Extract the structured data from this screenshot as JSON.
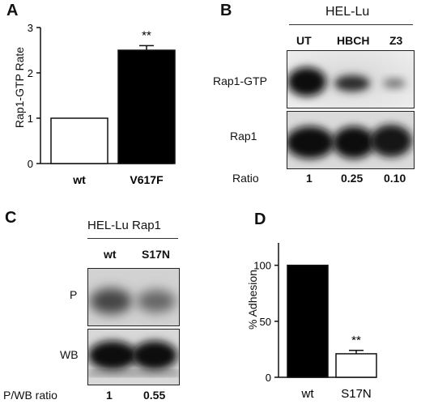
{
  "panel_a": {
    "letter": "A",
    "significance": "**"
  },
  "panel_b": {
    "letter": "B",
    "cell_line": "HEL-Lu",
    "lanes": [
      "UT",
      "HBCH",
      "Z3"
    ],
    "row_labels": [
      "Rap1-GTP",
      "Rap1"
    ],
    "ratio_label": "Ratio",
    "ratios": [
      "1",
      "0.25",
      "0.10"
    ]
  },
  "panel_c": {
    "letter": "C",
    "title": "HEL-Lu Rap1",
    "lanes": [
      "wt",
      "S17N"
    ],
    "row_labels": [
      "P",
      "WB"
    ],
    "ratio_label": "P/WB ratio",
    "ratios": [
      "1",
      "0.55"
    ]
  },
  "panel_d": {
    "letter": "D",
    "significance": "**"
  },
  "chart_data": [
    {
      "type": "bar",
      "panel": "A",
      "categories": [
        "wt",
        "V617F"
      ],
      "values": [
        1.0,
        2.5
      ],
      "errors": [
        0,
        0.1
      ],
      "fills": [
        "#ffffff",
        "#000000"
      ],
      "ylabel": "Rap1-GTP Rate",
      "xlabel": "",
      "ylim": [
        0,
        3
      ],
      "yticks": [
        0,
        1,
        2,
        3
      ]
    },
    {
      "type": "bar",
      "panel": "D",
      "categories": [
        "wt",
        "S17N"
      ],
      "values": [
        100,
        21
      ],
      "errors": [
        0,
        3
      ],
      "fills": [
        "#000000",
        "#ffffff"
      ],
      "ylabel": "% Adhesion",
      "xlabel": "",
      "ylim": [
        0,
        120
      ],
      "yticks": [
        0,
        50,
        100
      ]
    }
  ]
}
